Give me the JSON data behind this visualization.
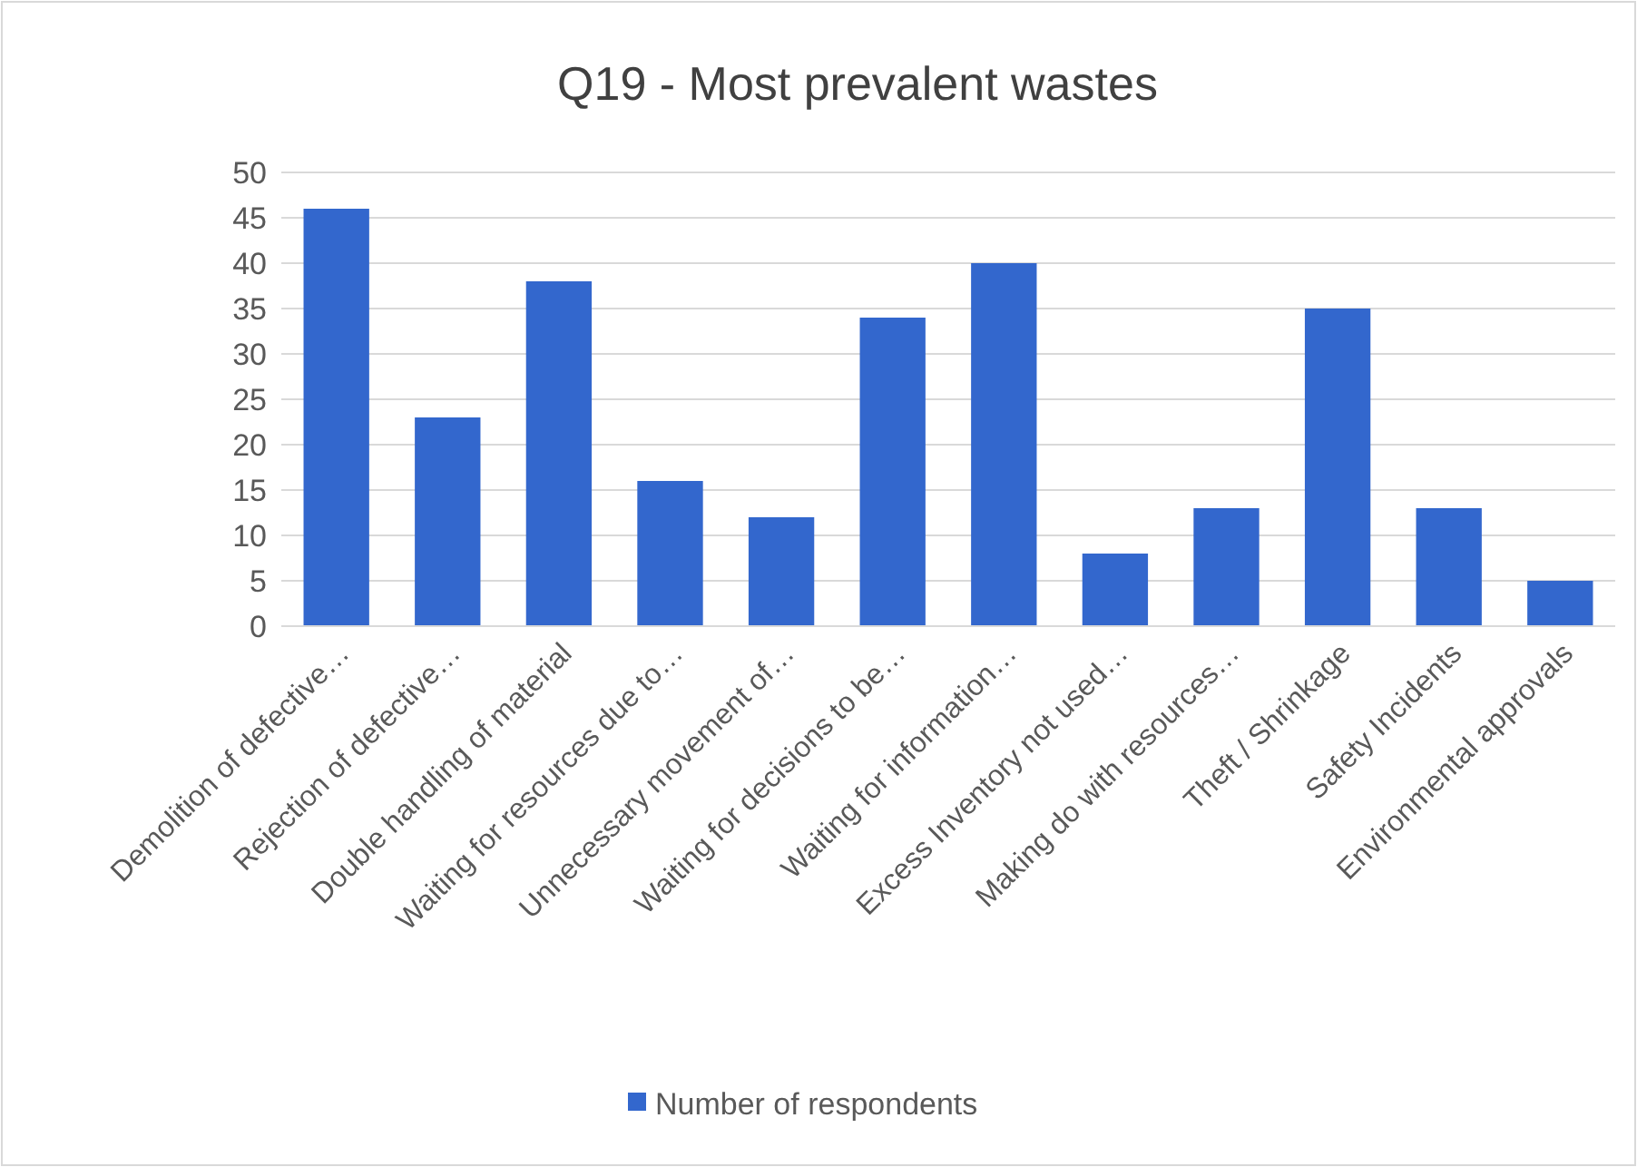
{
  "chart_data": {
    "type": "bar",
    "title": "Q19 - Most prevalent wastes",
    "categories": [
      "Demolition of defective…",
      "Rejection of defective…",
      "Double handling of material",
      "Waiting for resources due to…",
      "Unnecessary movement of…",
      "Waiting for decisions to be…",
      "Waiting for information…",
      "Excess Inventory not used…",
      "Making do with resources…",
      "Theft / Shrinkage",
      "Safety Incidents",
      "Environmental approvals"
    ],
    "series": [
      {
        "name": "Number of respondents",
        "color": "#3367cd",
        "values": [
          46,
          23,
          38,
          16,
          12,
          34,
          40,
          8,
          13,
          35,
          13,
          5
        ]
      }
    ],
    "ylim": [
      0,
      50
    ],
    "yticks": [
      0,
      5,
      10,
      15,
      20,
      25,
      30,
      35,
      40,
      45,
      50
    ],
    "grid": "y",
    "legend": "bottom"
  }
}
